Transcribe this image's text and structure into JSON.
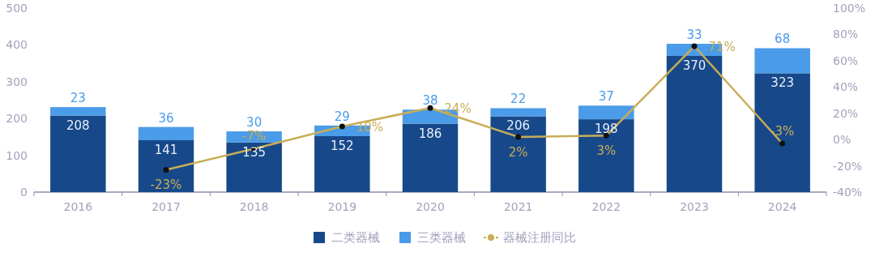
{
  "chart_data": {
    "type": "bar",
    "stacked": true,
    "categories": [
      "2016",
      "2017",
      "2018",
      "2019",
      "2020",
      "2021",
      "2022",
      "2023",
      "2024"
    ],
    "series": [
      {
        "name": "二类器械",
        "color": "#17498a",
        "values": [
          208,
          141,
          135,
          152,
          186,
          206,
          198,
          370,
          323
        ]
      },
      {
        "name": "三类器械",
        "color": "#4a9be8",
        "values": [
          23,
          36,
          30,
          29,
          38,
          22,
          37,
          33,
          68
        ]
      },
      {
        "name": "器械注册同比",
        "type": "line",
        "axis": "y2",
        "color": "#c9ad55",
        "marker": "circle",
        "values": [
          null,
          -23,
          -7,
          10,
          24,
          2,
          3,
          71,
          -3
        ],
        "value_labels": [
          null,
          "-23%",
          "-7%",
          "10%",
          "24%",
          "2%",
          "3%",
          "71%",
          "-3%"
        ]
      }
    ],
    "data_labels": true,
    "ylim": [
      0,
      500
    ],
    "yticks": [
      0,
      100,
      200,
      300,
      400,
      500
    ],
    "y2lim": [
      -40,
      100
    ],
    "y2ticks": [
      {
        "value": -40,
        "label": "-40%"
      },
      {
        "value": -20,
        "label": "-20%"
      },
      {
        "value": 0,
        "label": "0%"
      },
      {
        "value": 20,
        "label": "20%"
      },
      {
        "value": 40,
        "label": "40%"
      },
      {
        "value": 60,
        "label": "60%"
      },
      {
        "value": 80,
        "label": "80%"
      },
      {
        "value": 100,
        "label": "100%"
      }
    ],
    "legend": "bottom",
    "grid": false
  }
}
